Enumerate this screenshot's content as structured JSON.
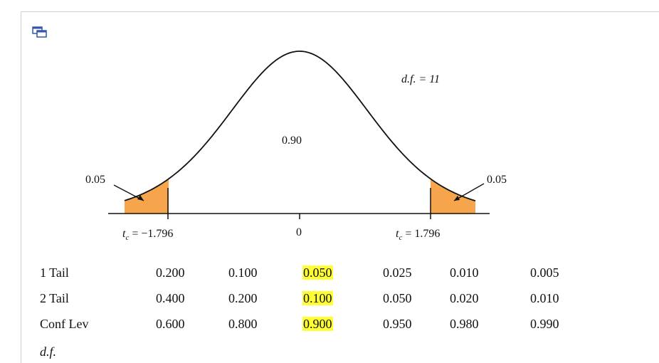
{
  "diagram": {
    "df_label": "d.f. = 11",
    "center_area": "0.90",
    "left_tail_area": "0.05",
    "right_tail_area": "0.05",
    "tc_left": "t",
    "tc_left_sub": "c",
    "tc_left_value": " = −1.796",
    "tc_right": "t",
    "tc_right_sub": "c",
    "tc_right_value": " = 1.796",
    "zero_label": "0",
    "tail_color": "#f6a54d"
  },
  "table": {
    "rows": [
      {
        "label": "1 Tail",
        "values": [
          "0.200",
          "0.100",
          "0.050",
          "0.025",
          "0.010",
          "0.005"
        ]
      },
      {
        "label": "2 Tail",
        "values": [
          "0.400",
          "0.200",
          "0.100",
          "0.050",
          "0.020",
          "0.010"
        ]
      },
      {
        "label": "Conf Lev",
        "values": [
          "0.600",
          "0.800",
          "0.900",
          "0.950",
          "0.980",
          "0.990"
        ]
      }
    ],
    "highlight_column": 2,
    "highlight_color": "#ffff33",
    "df_header": "d.f."
  },
  "icons": {
    "popout": "popout-window-icon"
  }
}
